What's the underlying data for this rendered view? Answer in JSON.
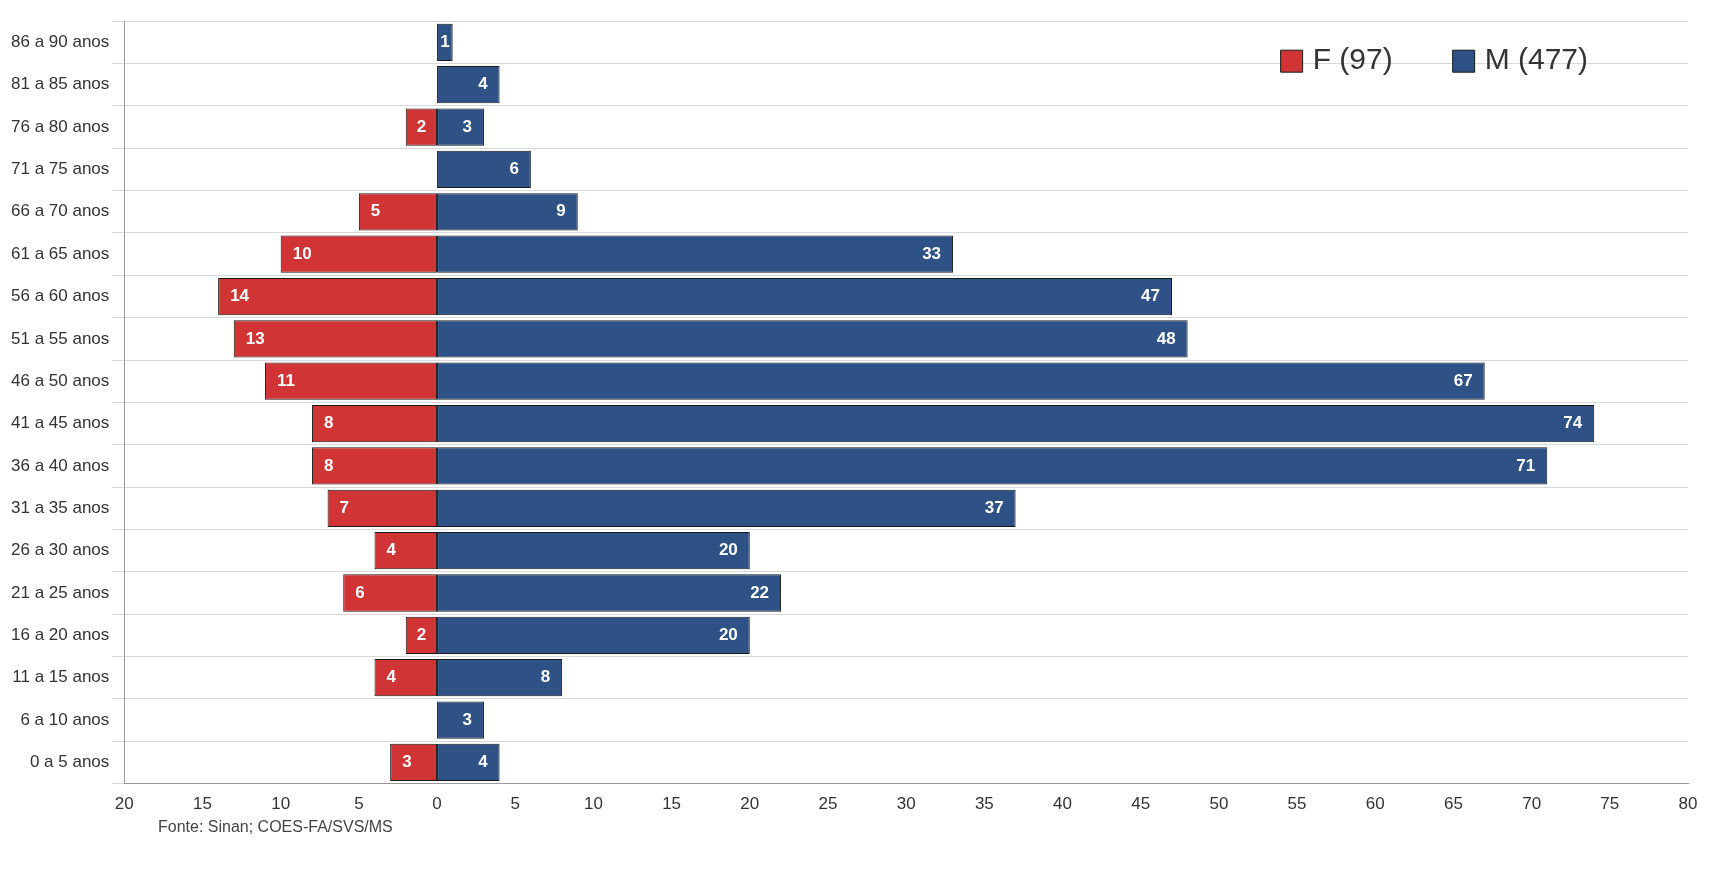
{
  "chart_data": {
    "type": "bar",
    "orientation": "horizontal",
    "data_labels": true,
    "categories": [
      "86 a 90 anos",
      "81 a 85 anos",
      "76 a 80 anos",
      "71 a 75 anos",
      "66 a 70 anos",
      "61 a 65 anos",
      "56 a 60 anos",
      "51 a 55 anos",
      "46 a 50 anos",
      "41 a 45 anos",
      "36 a 40 anos",
      "31 a 35 anos",
      "26 a 30 anos",
      "21 a 25 anos",
      "16 a 20 anos",
      "11 a 15 anos",
      "6 a 10 anos",
      "0 a 5 anos"
    ],
    "series": [
      {
        "name": "F (97)",
        "color": "#d03434",
        "values": [
          null,
          null,
          2,
          null,
          5,
          10,
          14,
          13,
          11,
          8,
          8,
          7,
          4,
          6,
          2,
          4,
          null,
          3
        ],
        "base": [
          null,
          null,
          -2,
          null,
          -5,
          -10,
          -14,
          -13,
          -11,
          -8,
          -8,
          -7,
          -4,
          -6,
          -2,
          -4,
          null,
          -3
        ]
      },
      {
        "name": "M (477)",
        "color": "#2e5186",
        "values": [
          1,
          4,
          3,
          6,
          9,
          33,
          47,
          48,
          67,
          74,
          71,
          37,
          20,
          22,
          20,
          8,
          3,
          4
        ]
      }
    ],
    "xlim": [
      -20,
      80
    ],
    "xticks": [
      {
        "value": -20,
        "label": "20"
      },
      {
        "value": -15,
        "label": "15"
      },
      {
        "value": -10,
        "label": "10"
      },
      {
        "value": -5,
        "label": "5"
      },
      0,
      5,
      10,
      15,
      20,
      25,
      30,
      35,
      40,
      45,
      50,
      55,
      60,
      65,
      70,
      75,
      80
    ],
    "grid": "y",
    "legend": "top right",
    "annotations": [
      "Fonte: Sinan; COES-FA/SVS/MS"
    ]
  }
}
